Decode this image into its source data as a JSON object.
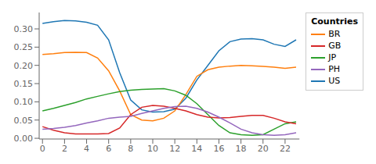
{
  "chart_data": {
    "type": "line",
    "x": [
      0,
      1,
      2,
      3,
      4,
      5,
      6,
      7,
      8,
      9,
      10,
      11,
      12,
      13,
      14,
      15,
      16,
      17,
      18,
      19,
      20,
      21,
      22,
      23
    ],
    "series": [
      {
        "name": "US",
        "color": "#1f77b4",
        "values": [
          0.315,
          0.32,
          0.323,
          0.322,
          0.318,
          0.31,
          0.27,
          0.18,
          0.105,
          0.078,
          0.072,
          0.073,
          0.08,
          0.11,
          0.16,
          0.2,
          0.24,
          0.265,
          0.272,
          0.273,
          0.27,
          0.258,
          0.252,
          0.27
        ]
      },
      {
        "name": "BR",
        "color": "#ff7f0e",
        "values": [
          0.23,
          0.232,
          0.235,
          0.236,
          0.235,
          0.22,
          0.185,
          0.13,
          0.065,
          0.05,
          0.048,
          0.055,
          0.075,
          0.12,
          0.17,
          0.188,
          0.195,
          0.198,
          0.2,
          0.199,
          0.197,
          0.195,
          0.192,
          0.195
        ]
      },
      {
        "name": "JP",
        "color": "#2ca02c",
        "values": [
          0.075,
          0.082,
          0.09,
          0.098,
          0.108,
          0.115,
          0.122,
          0.128,
          0.132,
          0.134,
          0.135,
          0.136,
          0.13,
          0.118,
          0.095,
          0.065,
          0.035,
          0.015,
          0.01,
          0.008,
          0.01,
          0.025,
          0.04,
          0.045
        ]
      },
      {
        "name": "GB",
        "color": "#d62728",
        "values": [
          0.032,
          0.022,
          0.015,
          0.012,
          0.012,
          0.012,
          0.013,
          0.028,
          0.065,
          0.085,
          0.09,
          0.088,
          0.082,
          0.075,
          0.065,
          0.058,
          0.056,
          0.057,
          0.06,
          0.063,
          0.063,
          0.055,
          0.045,
          0.04
        ]
      },
      {
        "name": "PH",
        "color": "#9467bd",
        "values": [
          0.025,
          0.027,
          0.03,
          0.035,
          0.042,
          0.048,
          0.055,
          0.058,
          0.06,
          0.068,
          0.075,
          0.082,
          0.087,
          0.088,
          0.082,
          0.072,
          0.058,
          0.042,
          0.025,
          0.015,
          0.01,
          0.008,
          0.01,
          0.015
        ]
      }
    ],
    "xlim": [
      -0.3,
      23.3
    ],
    "ylim": [
      -0.002,
      0.345
    ],
    "xticks": [
      0,
      2,
      4,
      6,
      8,
      10,
      12,
      14,
      16,
      18,
      20,
      22
    ],
    "yticks": [
      {
        "value": 0,
        "label": "0.00"
      },
      0.05,
      {
        "value": 0.1,
        "label": "0.10"
      },
      0.15,
      {
        "value": 0.2,
        "label": "0.20"
      },
      0.25,
      {
        "value": 0.3,
        "label": "0.30"
      }
    ],
    "legend_title": "Countries",
    "legend": "upper right",
    "grid": false
  }
}
